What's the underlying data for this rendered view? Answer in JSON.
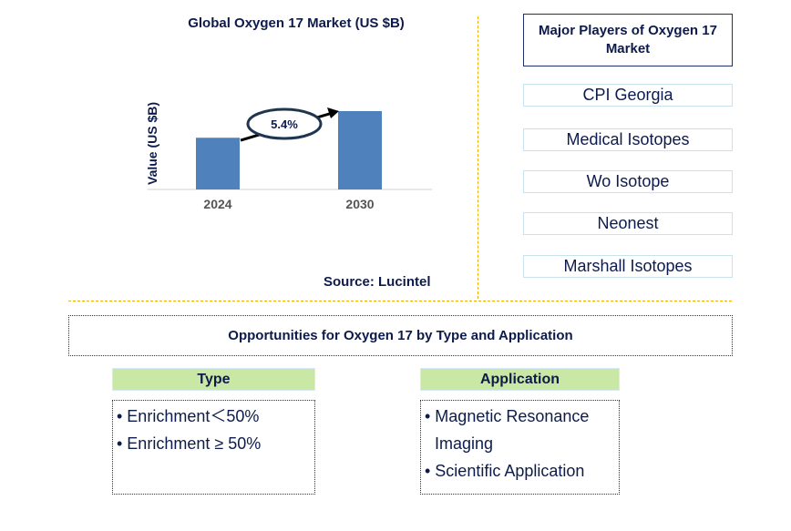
{
  "chart_data": {
    "type": "bar",
    "title": "Global Oxygen 17 Market (US $B)",
    "ylabel": "Value (US $B)",
    "categories": [
      "2024",
      "2030"
    ],
    "values": [
      0.66,
      1.0
    ],
    "ylim": [
      0,
      1
    ],
    "annotation": "5.4%",
    "grid": false,
    "bar_color": "#4f81bd"
  },
  "source": "Source: Lucintel",
  "players": {
    "title": "Major Players of Oxygen 17 Market",
    "items": [
      "CPI Georgia",
      "Medical Isotopes",
      "Wo Isotope",
      "Neonest",
      "Marshall Isotopes"
    ]
  },
  "opportunities": {
    "title": "Opportunities for Oxygen 17 by Type and Application",
    "type": {
      "header": "Type",
      "items": [
        "• Enrichment＜50%",
        "• Enrichment ≥ 50%"
      ]
    },
    "application": {
      "header": "Application",
      "items": [
        "• Magnetic Resonance",
        "Imaging",
        "• Scientific Application"
      ]
    }
  }
}
